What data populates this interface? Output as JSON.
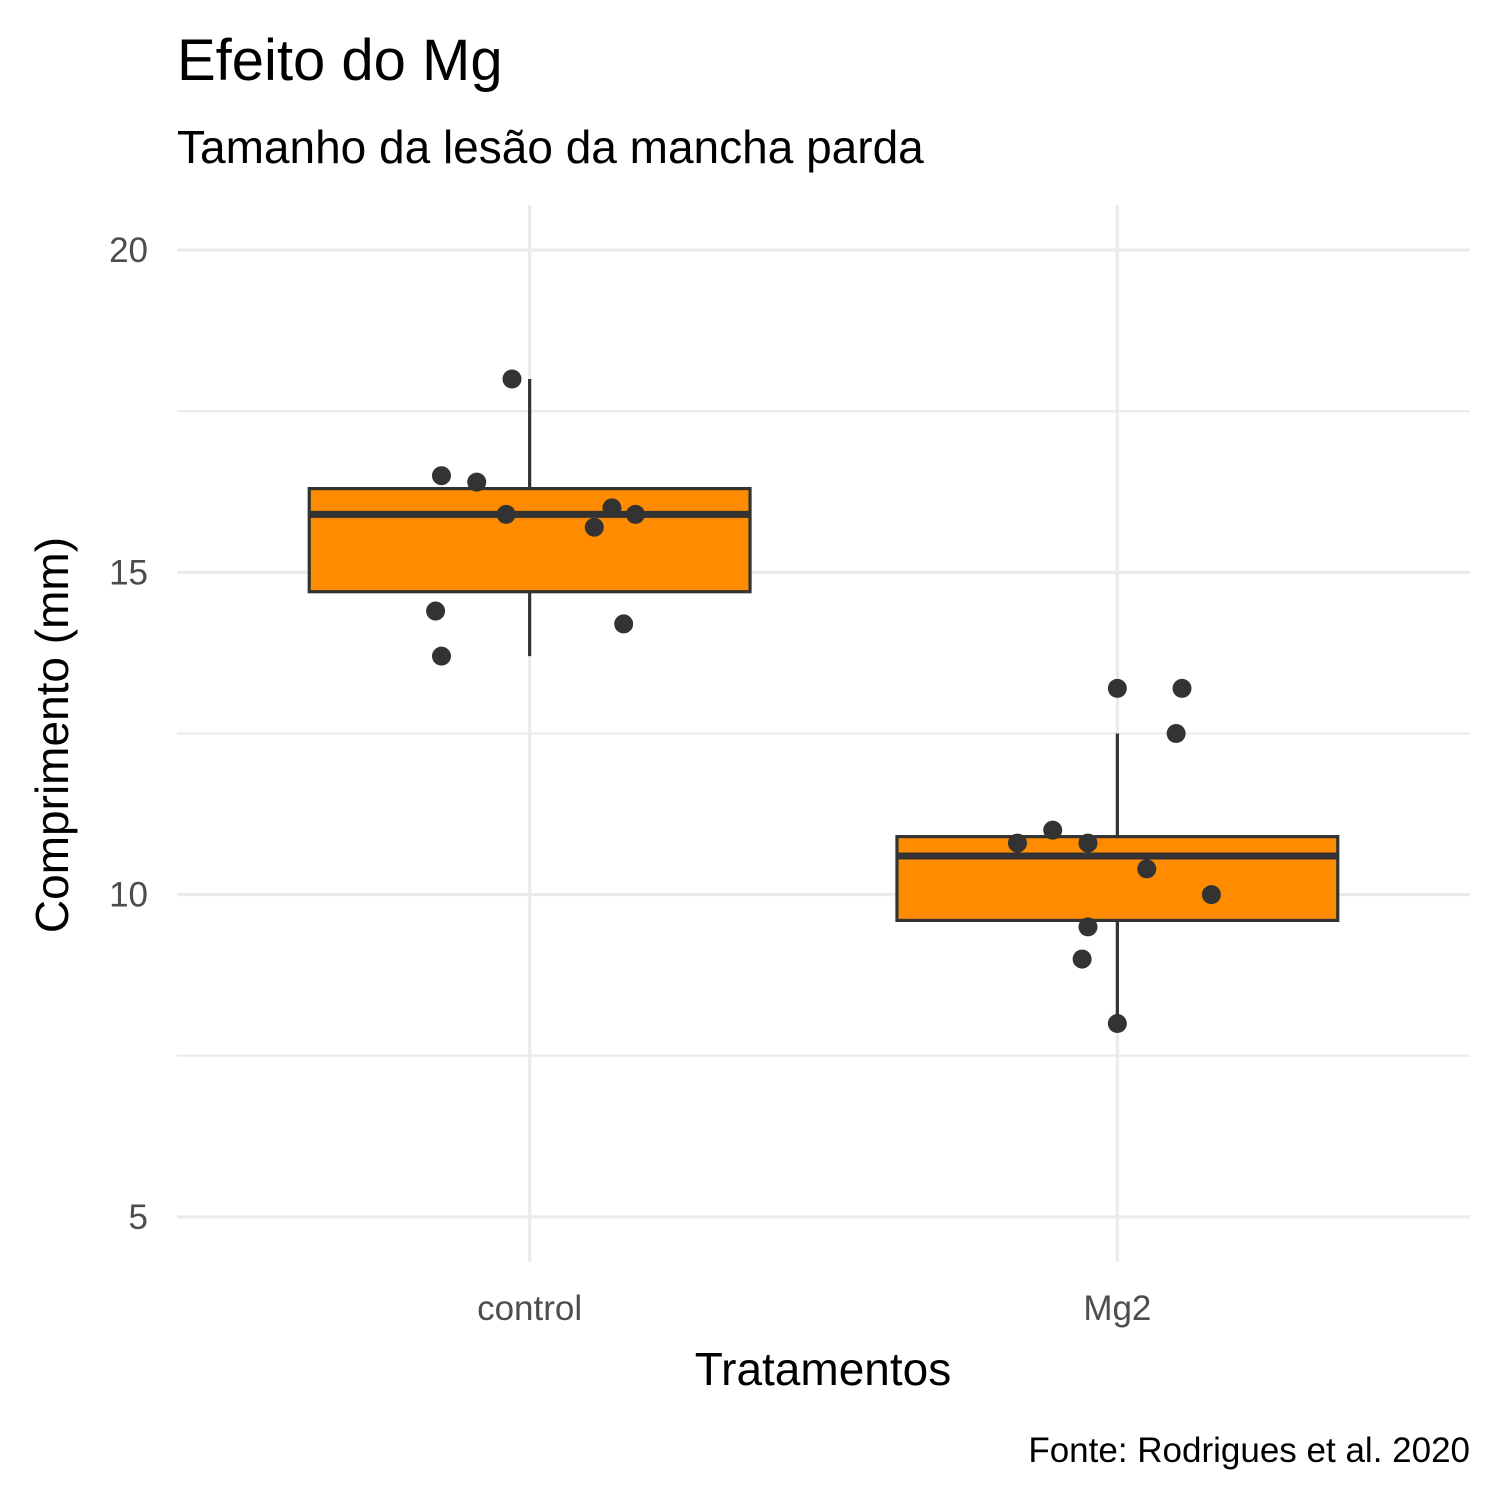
{
  "chart_data": {
    "type": "boxplot",
    "title": "Efeito do Mg",
    "subtitle": "Tamanho da lesão da mancha parda",
    "xlabel": "Tratamentos",
    "ylabel": "Comprimento (mm)",
    "caption": "Fonte: Rodrigues et al. 2020",
    "ylim": [
      4.3,
      20.7
    ],
    "y_ticks": [
      5,
      10,
      15,
      20
    ],
    "y_tick_labels": [
      "5",
      "10",
      "15",
      "20"
    ],
    "categories": [
      "control",
      "Mg2"
    ],
    "box_fill": "#FF8C00",
    "box_stroke": "#333333",
    "point_color": "#333333",
    "grid": true,
    "boxes": [
      {
        "category": "control",
        "whisker_low": 13.7,
        "q1": 14.7,
        "median": 15.9,
        "q3": 16.3,
        "whisker_high": 18.0
      },
      {
        "category": "Mg2",
        "whisker_low": 8.0,
        "q1": 9.6,
        "median": 10.6,
        "q3": 10.9,
        "whisker_high": 12.5
      }
    ],
    "points": [
      {
        "category": "control",
        "values": [
          18.0,
          16.5,
          16.4,
          16.0,
          15.9,
          15.9,
          15.7,
          14.4,
          14.2,
          13.7
        ],
        "jitter": [
          -0.03,
          -0.15,
          -0.09,
          0.14,
          -0.04,
          0.18,
          0.11,
          -0.16,
          0.16,
          -0.15
        ]
      },
      {
        "category": "Mg2",
        "values": [
          13.2,
          13.2,
          12.5,
          11.0,
          10.8,
          10.8,
          10.4,
          10.0,
          9.5,
          9.0,
          8.0
        ],
        "jitter": [
          0.0,
          0.11,
          0.1,
          -0.11,
          -0.17,
          -0.05,
          0.05,
          0.16,
          -0.05,
          -0.06,
          0.0
        ]
      }
    ]
  }
}
